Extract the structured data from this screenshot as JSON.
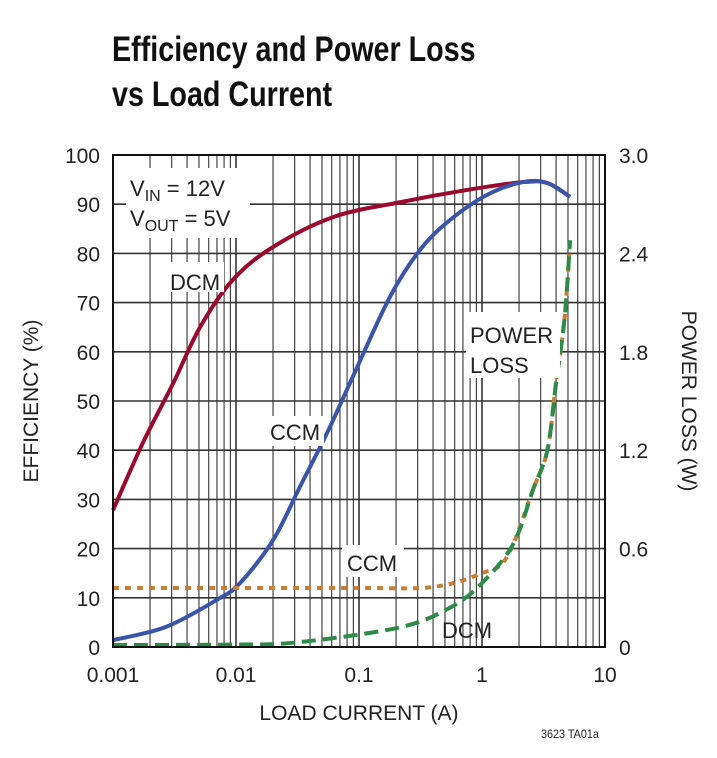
{
  "chart_data": {
    "type": "line",
    "title": [
      "Efficiency and Power Loss",
      "vs Load Current"
    ],
    "xlabel": "LOAD CURRENT (A)",
    "ylabel": "EFFICIENCY (%)",
    "y2label": "POWER LOSS (W)",
    "xscale": "log",
    "xlim": [
      0.001,
      10
    ],
    "ylim": [
      0,
      100
    ],
    "y2lim": [
      0,
      3.0
    ],
    "grid": true,
    "xticks": [
      "0.001",
      "0.01",
      "0.1",
      "1",
      "10"
    ],
    "yticks": [
      "0",
      "10",
      "20",
      "30",
      "40",
      "50",
      "60",
      "70",
      "80",
      "90",
      "100"
    ],
    "y2ticks": [
      "0",
      "0.6",
      "1.2",
      "1.8",
      "2.4",
      "3.0"
    ],
    "conditions": {
      "vin": {
        "main": "V",
        "sub": "IN",
        "rest": " = 12V"
      },
      "vout": {
        "main": "V",
        "sub": "OUT",
        "rest": " = 5V"
      }
    },
    "annotations": {
      "dcm_eff": "DCM",
      "ccm_eff": "CCM",
      "power_loss": [
        "POWER",
        "LOSS"
      ],
      "ccm_loss": "CCM",
      "dcm_loss": "DCM"
    },
    "series": [
      {
        "id": "dcm-efficiency",
        "axis": "left",
        "color": "#9b0a2e",
        "style": "solid",
        "x": [
          0.001,
          0.00175,
          0.0031,
          0.0051,
          0.0094,
          0.02,
          0.062,
          0.215,
          0.755,
          2.15,
          3.4,
          5.2
        ],
        "y": [
          27.8,
          41.5,
          53.7,
          65,
          74.6,
          81.3,
          87.4,
          90.4,
          92.9,
          94.5,
          94.3,
          91.5
        ]
      },
      {
        "id": "ccm-efficiency",
        "axis": "left",
        "color": "#3a55a8",
        "style": "solid",
        "x": [
          0.001,
          0.0027,
          0.007,
          0.0108,
          0.02,
          0.033,
          0.055,
          0.089,
          0.178,
          0.313,
          0.55,
          1.1,
          2.15,
          3.4,
          5.2
        ],
        "y": [
          1.4,
          4.1,
          9.6,
          13,
          21.7,
          32.5,
          43.5,
          54.9,
          71.1,
          80.7,
          86.8,
          91.9,
          94.5,
          94.3,
          91.5
        ]
      },
      {
        "id": "ccm-power-loss",
        "axis": "right",
        "color": "#c87d32",
        "style": "dotted",
        "x": [
          0.001,
          0.01,
          0.1,
          0.4,
          1.0,
          1.6,
          2.6,
          3.4,
          4.0,
          4.7,
          5.2
        ],
        "y": [
          0.36,
          0.36,
          0.36,
          0.366,
          0.45,
          0.55,
          0.96,
          1.2,
          1.61,
          2.01,
          2.48
        ]
      },
      {
        "id": "dcm-power-loss",
        "axis": "right",
        "color": "#2e8a48",
        "style": "dashed",
        "x": [
          0.001,
          0.01,
          0.033,
          0.215,
          0.55,
          1.0,
          1.8,
          2.6,
          3.4,
          4.0,
          4.7,
          5.2
        ],
        "y": [
          0.012,
          0.015,
          0.03,
          0.12,
          0.24,
          0.39,
          0.63,
          0.96,
          1.2,
          1.61,
          2.01,
          2.48
        ]
      }
    ],
    "footnote": "3623 TA01a"
  }
}
